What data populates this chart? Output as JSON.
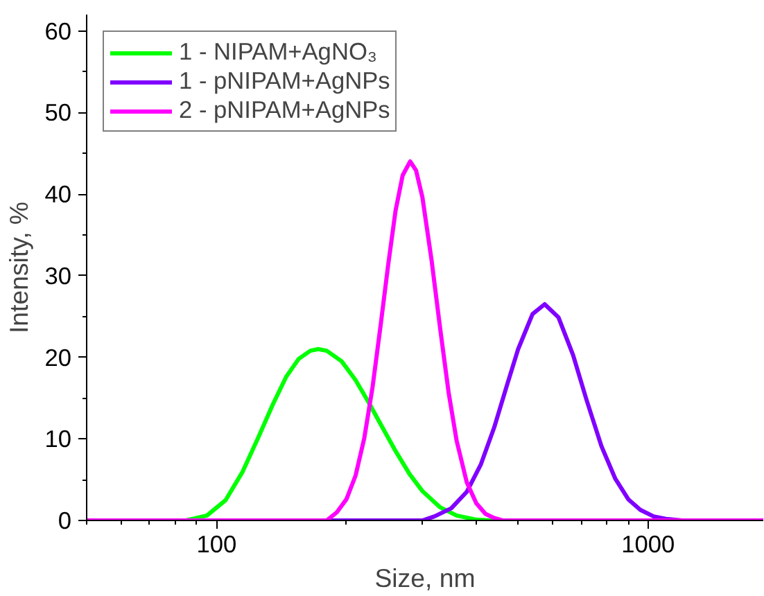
{
  "chart_data": {
    "type": "line",
    "xlabel": "Size, nm",
    "ylabel": "Intensity, %",
    "log": "x",
    "xlim": [
      50,
      1850
    ],
    "xticks": [
      {
        "value": 50,
        "label": null
      },
      {
        "value": 60,
        "label": null
      },
      {
        "value": 70,
        "label": null
      },
      {
        "value": 80,
        "label": null
      },
      {
        "value": 90,
        "label": null
      },
      100,
      {
        "value": 200,
        "label": null
      },
      {
        "value": 300,
        "label": null
      },
      {
        "value": 400,
        "label": null
      },
      {
        "value": 500,
        "label": null
      },
      {
        "value": 600,
        "label": null
      },
      {
        "value": 700,
        "label": null
      },
      {
        "value": 800,
        "label": null
      },
      {
        "value": 900,
        "label": null
      },
      1000
    ],
    "ylim": [
      0,
      62
    ],
    "yticks": [
      0,
      {
        "value": 5,
        "label": null
      },
      10,
      {
        "value": 15,
        "label": null
      },
      20,
      {
        "value": 25,
        "label": null
      },
      30,
      {
        "value": 35,
        "label": null
      },
      40,
      {
        "value": 45,
        "label": null
      },
      50,
      {
        "value": 55,
        "label": null
      },
      60
    ],
    "grid": false,
    "legend": "top left",
    "marker": "none",
    "line_style": "solid",
    "series": [
      {
        "name": "1 - NIPAM+AgNO₃",
        "color": "#00ff00",
        "x": [
          50,
          85,
          95,
          105,
          115,
          125,
          135,
          145,
          155,
          165,
          172,
          180,
          195,
          210,
          225,
          240,
          260,
          280,
          300,
          330,
          360,
          400,
          430,
          1850
        ],
        "values": [
          0,
          0,
          0.6,
          2.5,
          6,
          10.2,
          14.2,
          17.6,
          19.8,
          20.8,
          21,
          20.8,
          19.5,
          17.2,
          14.5,
          11.8,
          8.5,
          5.7,
          3.6,
          1.6,
          0.6,
          0.1,
          0,
          0
        ]
      },
      {
        "name": "1 - pNIPAM+AgNPs",
        "color": "#8000ff",
        "x": [
          50,
          300,
          320,
          350,
          380,
          410,
          440,
          470,
          500,
          540,
          576,
          620,
          670,
          720,
          780,
          840,
          900,
          960,
          1030,
          1100,
          1200,
          1850
        ],
        "values": [
          0,
          0,
          0.5,
          1.5,
          3.5,
          6.9,
          11.4,
          16.4,
          21.0,
          25.3,
          26.5,
          24.9,
          20.3,
          14.8,
          9.1,
          5.1,
          2.6,
          1.3,
          0.5,
          0.2,
          0,
          0
        ]
      },
      {
        "name": "2 - pNIPAM+AgNPs",
        "color": "#ff00ff",
        "x": [
          50,
          180,
          190,
          200,
          210,
          220,
          230,
          240,
          250,
          260,
          270,
          281,
          290,
          300,
          315,
          330,
          345,
          360,
          380,
          400,
          420,
          440,
          460,
          1850
        ],
        "values": [
          0,
          0,
          1.0,
          2.6,
          5.5,
          10.1,
          16.4,
          23.9,
          31.4,
          38,
          42.3,
          44,
          42.9,
          39.6,
          31.9,
          23.4,
          15.7,
          9.8,
          4.7,
          2.1,
          0.8,
          0.3,
          0,
          0
        ]
      }
    ]
  }
}
